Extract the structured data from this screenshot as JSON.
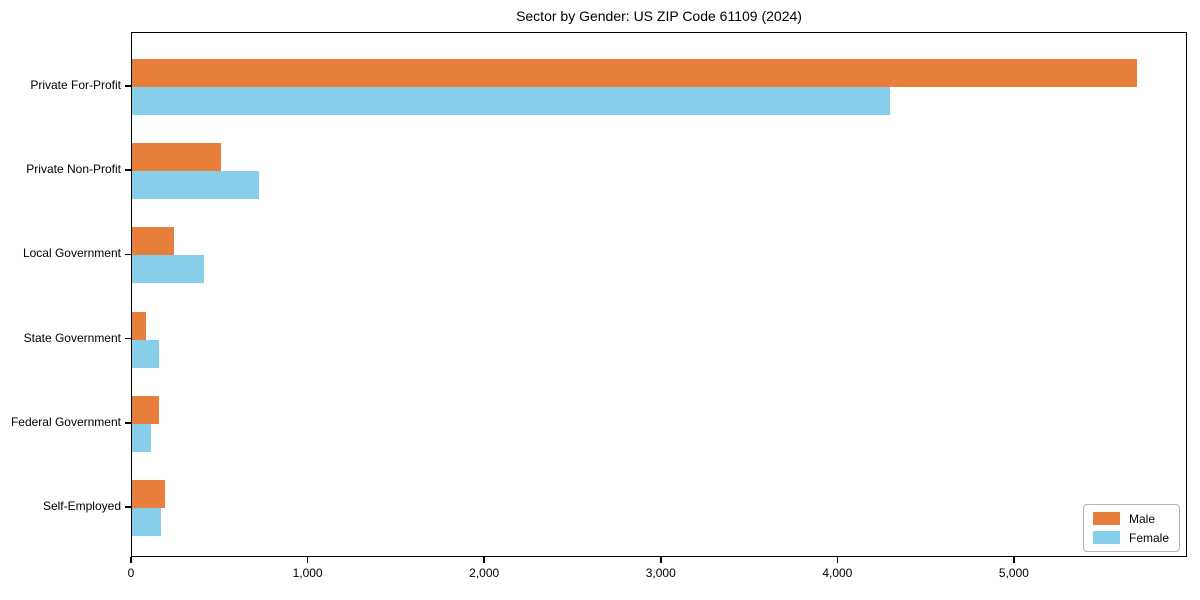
{
  "chart_data": {
    "type": "bar",
    "orientation": "horizontal",
    "title": "Sector by Gender: US ZIP Code 61109 (2024)",
    "categories": [
      "Private For-Profit",
      "Private Non-Profit",
      "Local Government",
      "State Government",
      "Federal Government",
      "Self-Employed"
    ],
    "series": [
      {
        "name": "Male",
        "color": "#e87e3c",
        "values": [
          5690,
          505,
          235,
          80,
          150,
          185
        ]
      },
      {
        "name": "Female",
        "color": "#87ceeb",
        "values": [
          4290,
          720,
          405,
          155,
          110,
          165
        ]
      }
    ],
    "xlabel": "",
    "ylabel": "",
    "xlim": [
      0,
      5980
    ],
    "x_ticks": [
      0,
      1000,
      2000,
      3000,
      4000,
      5000
    ],
    "x_tick_labels": [
      "0",
      "1,000",
      "2,000",
      "3,000",
      "4,000",
      "5,000"
    ],
    "grid": false,
    "legend": {
      "position": "lower right"
    }
  },
  "colors": {
    "spine": "#000000",
    "text": "#000000",
    "background": "#ffffff",
    "legend_border": "#b3b3b3"
  }
}
